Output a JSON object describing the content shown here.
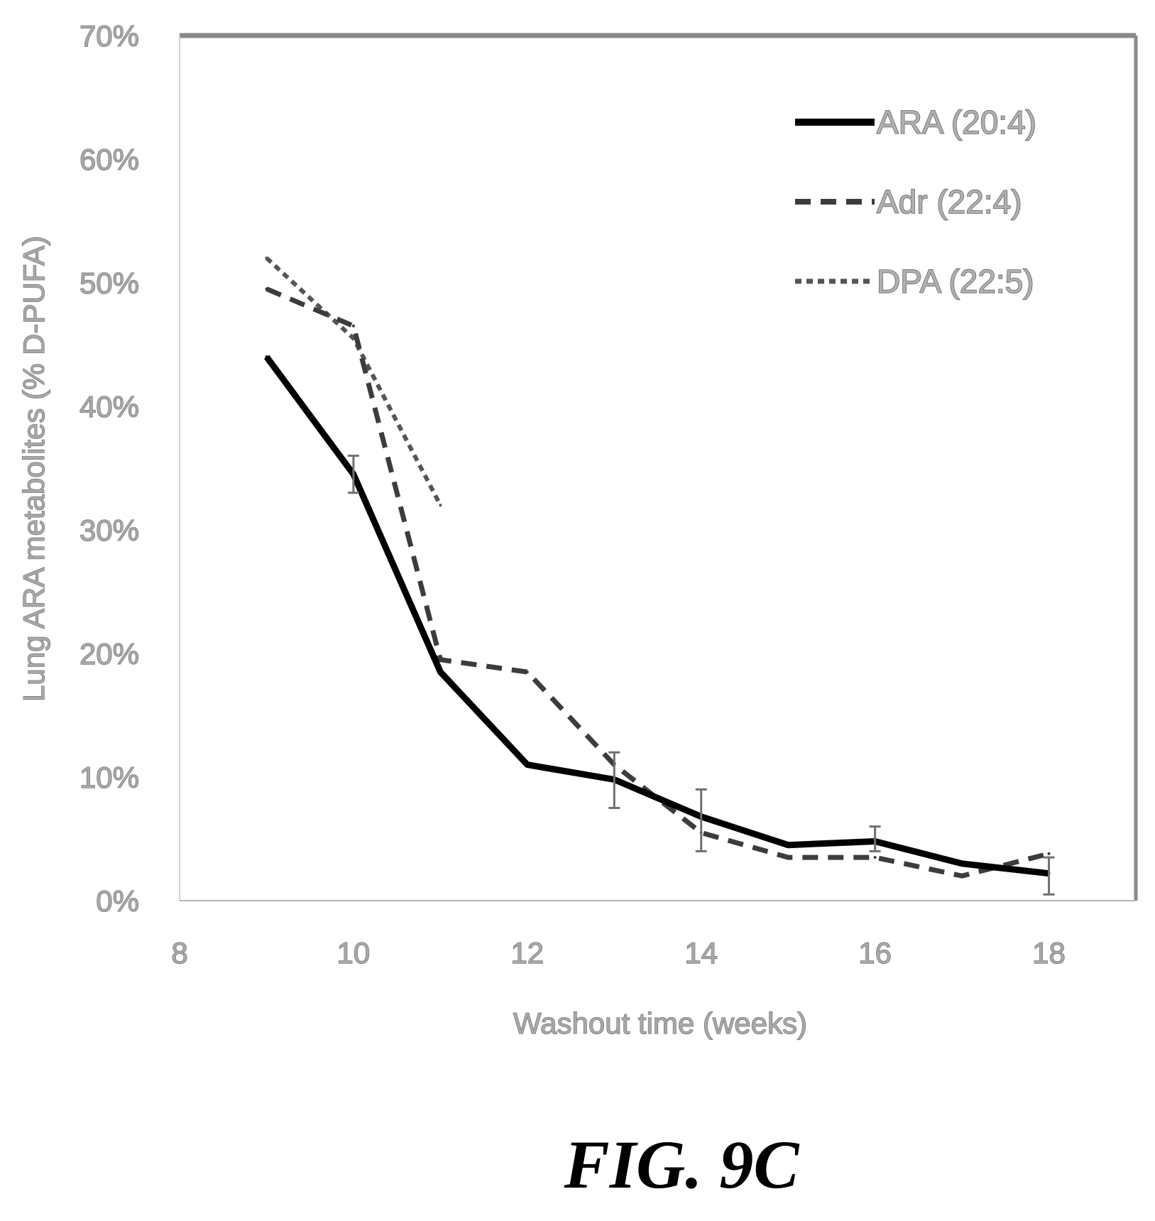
{
  "chart_data": {
    "type": "line",
    "xlabel": "Washout time (weeks)",
    "ylabel": "Lung ARA metabolites (% D-PUFA)",
    "xlim": [
      8,
      19
    ],
    "ylim": [
      0,
      70
    ],
    "x_ticks": [
      "8",
      "10",
      "12",
      "14",
      "16",
      "18"
    ],
    "y_ticks": [
      "0%",
      "10%",
      "20%",
      "30%",
      "40%",
      "50%",
      "60%",
      "70%"
    ],
    "legend_position": "top-right",
    "grid": false,
    "series": [
      {
        "name": "ARA (20:4)",
        "style": "solid",
        "color": "#000000",
        "x": [
          9,
          10,
          11,
          12,
          13,
          14,
          15,
          16,
          17,
          18
        ],
        "y": [
          44,
          34.5,
          18.5,
          11,
          9.8,
          6.8,
          4.5,
          4.8,
          3,
          2.2
        ],
        "error_bars": [
          {
            "x": 10,
            "low": 33,
            "high": 36
          },
          {
            "x": 13,
            "low": 7.5,
            "high": 12
          },
          {
            "x": 14,
            "low": 4,
            "high": 9
          },
          {
            "x": 16,
            "low": 4,
            "high": 6
          },
          {
            "x": 18,
            "low": 0.5,
            "high": 3.5
          }
        ]
      },
      {
        "name": "Adr (22:4)",
        "style": "dashed",
        "color": "#3c3c3c",
        "x": [
          9,
          10,
          11,
          12,
          13,
          14,
          15,
          16,
          17,
          18
        ],
        "y": [
          49.5,
          46.5,
          19.5,
          18.5,
          11,
          5.5,
          3.5,
          3.5,
          2,
          3.8
        ]
      },
      {
        "name": "DPA (22:5)",
        "style": "dotted",
        "color": "#555555",
        "x": [
          9,
          10,
          11
        ],
        "y": [
          52,
          45.5,
          32
        ]
      }
    ]
  },
  "figure": {
    "caption": "FIG. 9C"
  }
}
